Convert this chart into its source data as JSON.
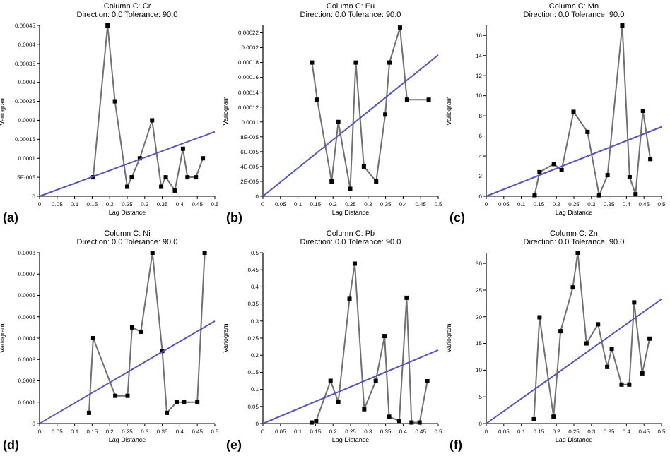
{
  "chart_data": [
    {
      "type": "line",
      "title": "Column C:  Cr",
      "subtitle": "Direction: 0.0  Tolerance: 90.0",
      "xlabel": "Lag Distance",
      "ylabel": "Variogram",
      "annotations": [
        "(a)"
      ],
      "marker": "square",
      "grid": false,
      "xlim": [
        0,
        0.5
      ],
      "xticks": [
        0,
        0.05,
        0.1,
        0.15,
        0.2,
        0.25,
        0.3,
        0.35,
        0.4,
        0.45,
        0.5
      ],
      "ylim": [
        0,
        0.00045
      ],
      "yticks": [
        0,
        {
          "value": 5e-05,
          "label": "5E-005"
        },
        0.0001,
        0.00015,
        0.0002,
        0.00025,
        0.0003,
        0.00035,
        0.0004,
        0.00045
      ],
      "series": [
        {
          "color": "#707070",
          "x": [
            0.153,
            0.194,
            0.215,
            0.25,
            0.263,
            0.286,
            0.321,
            0.347,
            0.36,
            0.386,
            0.409,
            0.422,
            0.446,
            0.466
          ],
          "values": [
            5e-05,
            0.00045,
            0.00025,
            2.5e-05,
            5e-05,
            0.0001,
            0.0002,
            2.5e-05,
            5e-05,
            1.5e-05,
            0.000125,
            5e-05,
            5e-05,
            0.0001
          ]
        },
        {
          "color": "#5555bb",
          "marker": "none",
          "x": [
            0,
            0.5
          ],
          "values": [
            0,
            0.00017
          ]
        }
      ]
    },
    {
      "type": "line",
      "title": "Column C:  Eu",
      "subtitle": "Direction: 0.0  Tolerance: 90.0",
      "xlabel": "Lag Distance",
      "ylabel": "Variogram",
      "annotations": [
        "(b)"
      ],
      "marker": "square",
      "grid": false,
      "xlim": [
        0,
        0.5
      ],
      "xticks": [
        0,
        0.05,
        0.1,
        0.15,
        0.2,
        0.25,
        0.3,
        0.35,
        0.4,
        0.45,
        0.5
      ],
      "ylim": [
        0,
        0.00023
      ],
      "yticks": [
        0,
        {
          "value": 2e-05,
          "label": "2E-005"
        },
        {
          "value": 4e-05,
          "label": "4E-005"
        },
        {
          "value": 6e-05,
          "label": "6E-005"
        },
        {
          "value": 8e-05,
          "label": "8E-005"
        },
        0.0001,
        0.00012,
        0.00014,
        0.00016,
        0.00018,
        0.0002,
        0.00022
      ],
      "series": [
        {
          "color": "#707070",
          "x": [
            0.14,
            0.155,
            0.196,
            0.215,
            0.249,
            0.265,
            0.288,
            0.323,
            0.349,
            0.361,
            0.391,
            0.411,
            0.473
          ],
          "values": [
            0.00018,
            0.00013,
            2e-05,
            0.0001,
            1e-05,
            0.00018,
            4e-05,
            2e-05,
            0.00011,
            0.00018,
            0.000227,
            0.00013,
            0.00013
          ]
        },
        {
          "color": "#5555bb",
          "marker": "none",
          "x": [
            0,
            0.5
          ],
          "values": [
            0,
            0.00019
          ]
        }
      ]
    },
    {
      "type": "line",
      "title": "Column C:  Mn",
      "subtitle": "Direction: 0.0  Tolerance: 90.0",
      "xlabel": "Lag Distance",
      "ylabel": "Variogram",
      "annotations": [
        "(c)"
      ],
      "marker": "square",
      "grid": false,
      "xlim": [
        0,
        0.5
      ],
      "xticks": [
        0,
        0.05,
        0.1,
        0.15,
        0.2,
        0.25,
        0.3,
        0.35,
        0.4,
        0.45,
        0.5
      ],
      "ylim": [
        0,
        17
      ],
      "yticks": [
        0,
        2,
        4,
        6,
        8,
        10,
        12,
        14,
        16
      ],
      "series": [
        {
          "color": "#707070",
          "x": [
            0.138,
            0.152,
            0.193,
            0.215,
            0.249,
            0.289,
            0.322,
            0.346,
            0.388,
            0.409,
            0.426,
            0.447,
            0.468
          ],
          "values": [
            0.1,
            2.4,
            3.2,
            2.6,
            8.4,
            6.4,
            0.1,
            2.1,
            17,
            1.9,
            0.2,
            8.5,
            3.7
          ]
        },
        {
          "color": "#5555bb",
          "marker": "none",
          "x": [
            0,
            0.5
          ],
          "values": [
            0,
            6.9
          ]
        }
      ]
    },
    {
      "type": "line",
      "title": "Column C:  Ni",
      "subtitle": "Direction: 0.0  Tolerance: 90.0",
      "xlabel": "Lag Distance",
      "ylabel": "Variogram",
      "annotations": [
        "(d)"
      ],
      "marker": "square",
      "grid": false,
      "xlim": [
        0,
        0.5
      ],
      "xticks": [
        0,
        0.05,
        0.1,
        0.15,
        0.2,
        0.25,
        0.3,
        0.35,
        0.4,
        0.45,
        0.5
      ],
      "ylim": [
        0,
        0.0008
      ],
      "yticks": [
        0,
        0.0001,
        0.0002,
        0.0003,
        0.0004,
        0.0005,
        0.0006,
        0.0007,
        0.0008
      ],
      "series": [
        {
          "color": "#707070",
          "x": [
            0.141,
            0.153,
            0.216,
            0.251,
            0.264,
            0.289,
            0.322,
            0.35,
            0.363,
            0.391,
            0.412,
            0.45,
            0.471
          ],
          "values": [
            5e-05,
            0.0004,
            0.00013,
            0.00013,
            0.00045,
            0.00043,
            0.0008,
            0.00034,
            5e-05,
            0.0001,
            0.0001,
            0.0001,
            0.0008
          ]
        },
        {
          "color": "#5555bb",
          "marker": "none",
          "x": [
            0,
            0.5
          ],
          "values": [
            0,
            0.00048
          ]
        }
      ]
    },
    {
      "type": "line",
      "title": "Column C:  Pb",
      "subtitle": "Direction: 0.0  Tolerance: 90.0",
      "xlabel": "Lag Distance",
      "ylabel": "Variogram",
      "annotations": [
        "(e)"
      ],
      "marker": "square",
      "grid": false,
      "xlim": [
        0,
        0.5
      ],
      "xticks": [
        0,
        0.05,
        0.1,
        0.15,
        0.2,
        0.25,
        0.3,
        0.35,
        0.4,
        0.45,
        0.5
      ],
      "ylim": [
        0,
        0.5
      ],
      "yticks": [
        0,
        0.05,
        0.1,
        0.15,
        0.2,
        0.25,
        0.3,
        0.35,
        0.4,
        0.45,
        0.5
      ],
      "series": [
        {
          "color": "#707070",
          "x": [
            0.139,
            0.152,
            0.193,
            0.215,
            0.247,
            0.262,
            0.289,
            0.322,
            0.347,
            0.36,
            0.389,
            0.41,
            0.424,
            0.447,
            0.469
          ],
          "values": [
            0.003,
            0.008,
            0.125,
            0.063,
            0.365,
            0.468,
            0.042,
            0.125,
            0.256,
            0.02,
            0.008,
            0.368,
            0.003,
            0.003,
            0.124
          ]
        },
        {
          "color": "#5555bb",
          "marker": "none",
          "x": [
            0,
            0.5
          ],
          "values": [
            0,
            0.215
          ]
        }
      ]
    },
    {
      "type": "line",
      "title": "Column C:  Zn",
      "subtitle": "Direction: 0.0  Tolerance: 90.0",
      "xlabel": "Lag Distance",
      "ylabel": "Variogram",
      "annotations": [
        "(f)"
      ],
      "marker": "square",
      "grid": false,
      "xlim": [
        0,
        0.5
      ],
      "xticks": [
        0,
        0.05,
        0.1,
        0.15,
        0.2,
        0.25,
        0.3,
        0.35,
        0.4,
        0.45,
        0.5
      ],
      "ylim": [
        0,
        32
      ],
      "yticks": [
        0,
        5,
        10,
        15,
        20,
        25,
        30
      ],
      "series": [
        {
          "color": "#707070",
          "x": [
            0.136,
            0.152,
            0.192,
            0.212,
            0.247,
            0.261,
            0.286,
            0.319,
            0.345,
            0.358,
            0.386,
            0.408,
            0.422,
            0.445,
            0.466
          ],
          "values": [
            0.8,
            19.9,
            1.3,
            17.3,
            25.5,
            32,
            15,
            18.6,
            10.6,
            14,
            7.3,
            7.3,
            22.7,
            9.4,
            15.9
          ]
        },
        {
          "color": "#5555bb",
          "marker": "none",
          "x": [
            0,
            0.5
          ],
          "values": [
            0,
            23.3
          ]
        }
      ]
    }
  ]
}
